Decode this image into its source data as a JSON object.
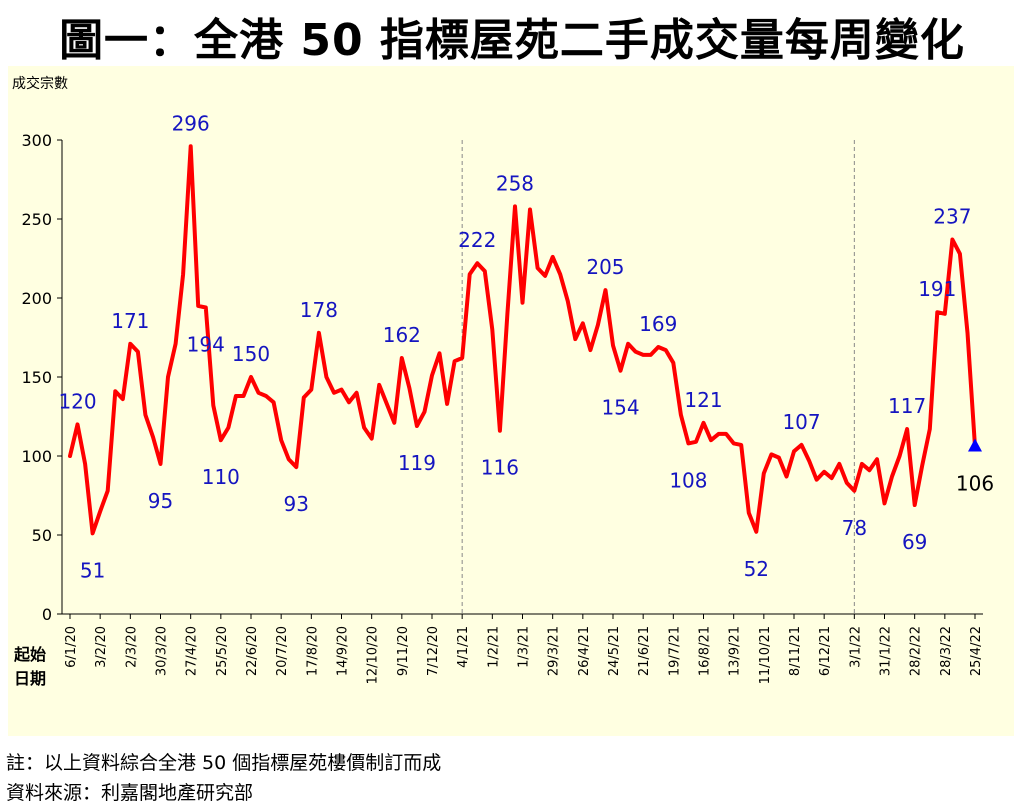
{
  "title": "圖一：全港 50 指標屋苑二手成交量每周變化",
  "footnotes": {
    "note": "註：以上資料綜合全港 50 個指標屋苑樓價制訂而成",
    "source": "資料來源：利嘉閣地產研究部"
  },
  "colors": {
    "line": "#FF0000",
    "label": "#1515C0",
    "last_label": "#000000",
    "marker": "#0000FF",
    "background": "#FFFFE1"
  },
  "chart_data": {
    "type": "line",
    "title": "圖一：全港 50 指標屋苑二手成交量每周變化",
    "ylabel": "成交宗數",
    "xlabel": "起始日期",
    "ylim": [
      0,
      300
    ],
    "yticks": [
      0,
      50,
      100,
      150,
      200,
      250,
      300
    ],
    "grid": false,
    "x_tick_labels": [
      "6/1/20",
      "3/2/20",
      "2/3/20",
      "30/3/20",
      "27/4/20",
      "25/5/20",
      "22/6/20",
      "20/7/20",
      "17/8/20",
      "14/9/20",
      "12/10/20",
      "9/11/20",
      "7/12/20",
      "4/1/21",
      "1/2/21",
      "1/3/21",
      "29/3/21",
      "26/4/21",
      "24/5/21",
      "21/6/21",
      "19/7/21",
      "16/8/21",
      "13/9/21",
      "11/10/21",
      "8/11/21",
      "6/12/21",
      "3/1/22",
      "31/1/22",
      "28/2/22",
      "28/3/22",
      "25/4/22"
    ],
    "year_dividers": [
      "4/1/21",
      "3/1/22"
    ],
    "values": [
      100,
      120,
      95,
      51,
      65,
      78,
      141,
      136,
      171,
      166,
      126,
      112,
      95,
      150,
      171,
      215,
      296,
      195,
      194,
      132,
      110,
      118,
      138,
      138,
      150,
      140,
      138,
      134,
      110,
      98,
      93,
      137,
      142,
      178,
      150,
      140,
      142,
      134,
      140,
      118,
      111,
      145,
      133,
      121,
      162,
      143,
      119,
      128,
      151,
      165,
      133,
      160,
      162,
      215,
      222,
      217,
      180,
      116,
      190,
      258,
      197,
      256,
      219,
      214,
      226,
      215,
      198,
      174,
      184,
      167,
      183,
      205,
      170,
      154,
      171,
      166,
      164,
      164,
      169,
      167,
      159,
      126,
      108,
      109,
      121,
      110,
      114,
      114,
      108,
      107,
      64,
      52,
      89,
      101,
      99,
      87,
      103,
      107,
      97,
      85,
      90,
      86,
      95,
      83,
      78,
      95,
      91,
      98,
      70,
      87,
      100,
      117,
      69,
      94,
      117,
      191,
      190,
      237,
      228,
      178,
      106
    ],
    "annotations": [
      {
        "index": 1,
        "value": 120,
        "label": "120"
      },
      {
        "index": 3,
        "value": 51,
        "label": "51"
      },
      {
        "index": 8,
        "value": 171,
        "label": "171"
      },
      {
        "index": 12,
        "value": 95,
        "label": "95"
      },
      {
        "index": 16,
        "value": 296,
        "label": "296"
      },
      {
        "index": 18,
        "value": 194,
        "label": "194"
      },
      {
        "index": 20,
        "value": 110,
        "label": "110"
      },
      {
        "index": 24,
        "value": 150,
        "label": "150"
      },
      {
        "index": 30,
        "value": 93,
        "label": "93"
      },
      {
        "index": 33,
        "value": 178,
        "label": "178"
      },
      {
        "index": 44,
        "value": 162,
        "label": "162"
      },
      {
        "index": 46,
        "value": 119,
        "label": "119"
      },
      {
        "index": 54,
        "value": 222,
        "label": "222"
      },
      {
        "index": 57,
        "value": 116,
        "label": "116"
      },
      {
        "index": 59,
        "value": 258,
        "label": "258"
      },
      {
        "index": 71,
        "value": 205,
        "label": "205"
      },
      {
        "index": 73,
        "value": 154,
        "label": "154"
      },
      {
        "index": 78,
        "value": 169,
        "label": "169"
      },
      {
        "index": 82,
        "value": 108,
        "label": "108"
      },
      {
        "index": 84,
        "value": 121,
        "label": "121"
      },
      {
        "index": 91,
        "value": 52,
        "label": "52"
      },
      {
        "index": 97,
        "value": 107,
        "label": "107"
      },
      {
        "index": 104,
        "value": 78,
        "label": "78"
      },
      {
        "index": 111,
        "value": 117,
        "label": "117"
      },
      {
        "index": 112,
        "value": 69,
        "label": "69"
      },
      {
        "index": 115,
        "value": 191,
        "label": "191"
      },
      {
        "index": 117,
        "value": 237,
        "label": "237"
      },
      {
        "index": 120,
        "value": 106,
        "label": "106"
      }
    ]
  }
}
